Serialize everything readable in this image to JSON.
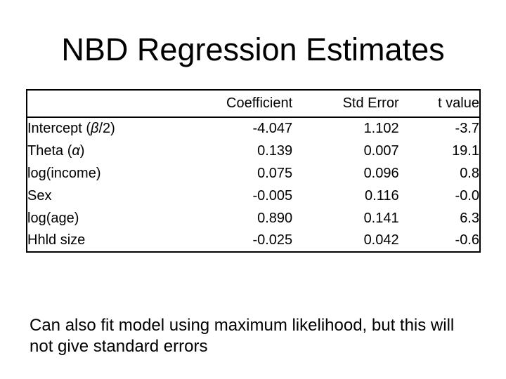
{
  "slide": {
    "title": "NBD Regression Estimates",
    "table": {
      "headers": [
        "Coefficient",
        "Std Error",
        "t value"
      ],
      "rows": [
        {
          "label": "Intercept (β/2)",
          "coefficient": "-4.047",
          "std_error": "1.102",
          "t_value": "-3.7"
        },
        {
          "label": "Theta (α)",
          "coefficient": "0.139",
          "std_error": "0.007",
          "t_value": "19.1"
        },
        {
          "label": "log(income)",
          "coefficient": "0.075",
          "std_error": "0.096",
          "t_value": "0.8"
        },
        {
          "label": "Sex",
          "coefficient": "-0.005",
          "std_error": "0.116",
          "t_value": "-0.0"
        },
        {
          "label": "log(age)",
          "coefficient": "0.890",
          "std_error": "0.141",
          "t_value": "6.3"
        },
        {
          "label": "Hhld size",
          "coefficient": "-0.025",
          "std_error": "0.042",
          "t_value": "-0.6"
        }
      ]
    },
    "note": "Can also fit model using maximum likelihood, but this will not give standard errors",
    "colors": {
      "background": "#ffffff",
      "text": "#000000",
      "table_border": "#000000"
    }
  }
}
